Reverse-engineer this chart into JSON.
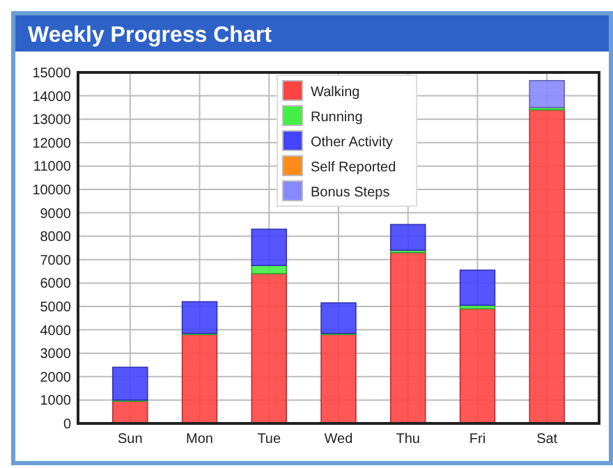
{
  "chart_data": {
    "type": "bar",
    "title": "Weekly Progress Chart",
    "stacked": true,
    "categories": [
      "Sun",
      "Mon",
      "Tue",
      "Wed",
      "Thu",
      "Fri",
      "Sat"
    ],
    "series": [
      {
        "name": "Walking",
        "color": "#ff4444",
        "values": [
          950,
          3800,
          6400,
          3800,
          7300,
          4900,
          13400
        ]
      },
      {
        "name": "Running",
        "color": "#44ee44",
        "values": [
          50,
          50,
          350,
          50,
          100,
          150,
          100
        ]
      },
      {
        "name": "Other Activity",
        "color": "#4444ff",
        "values": [
          1400,
          1350,
          1550,
          1300,
          1100,
          1500,
          0
        ]
      },
      {
        "name": "Self Reported",
        "color": "#ff8c1a",
        "values": [
          0,
          0,
          0,
          0,
          0,
          0,
          0
        ]
      },
      {
        "name": "Bonus Steps",
        "color": "#8888ff",
        "values": [
          0,
          0,
          0,
          0,
          0,
          0,
          1150
        ]
      }
    ],
    "ylim": [
      0,
      15000
    ],
    "yticks": [
      0,
      1000,
      2000,
      3000,
      4000,
      5000,
      6000,
      7000,
      8000,
      9000,
      10000,
      11000,
      12000,
      13000,
      14000,
      15000
    ],
    "grid": true,
    "legend": "top"
  }
}
